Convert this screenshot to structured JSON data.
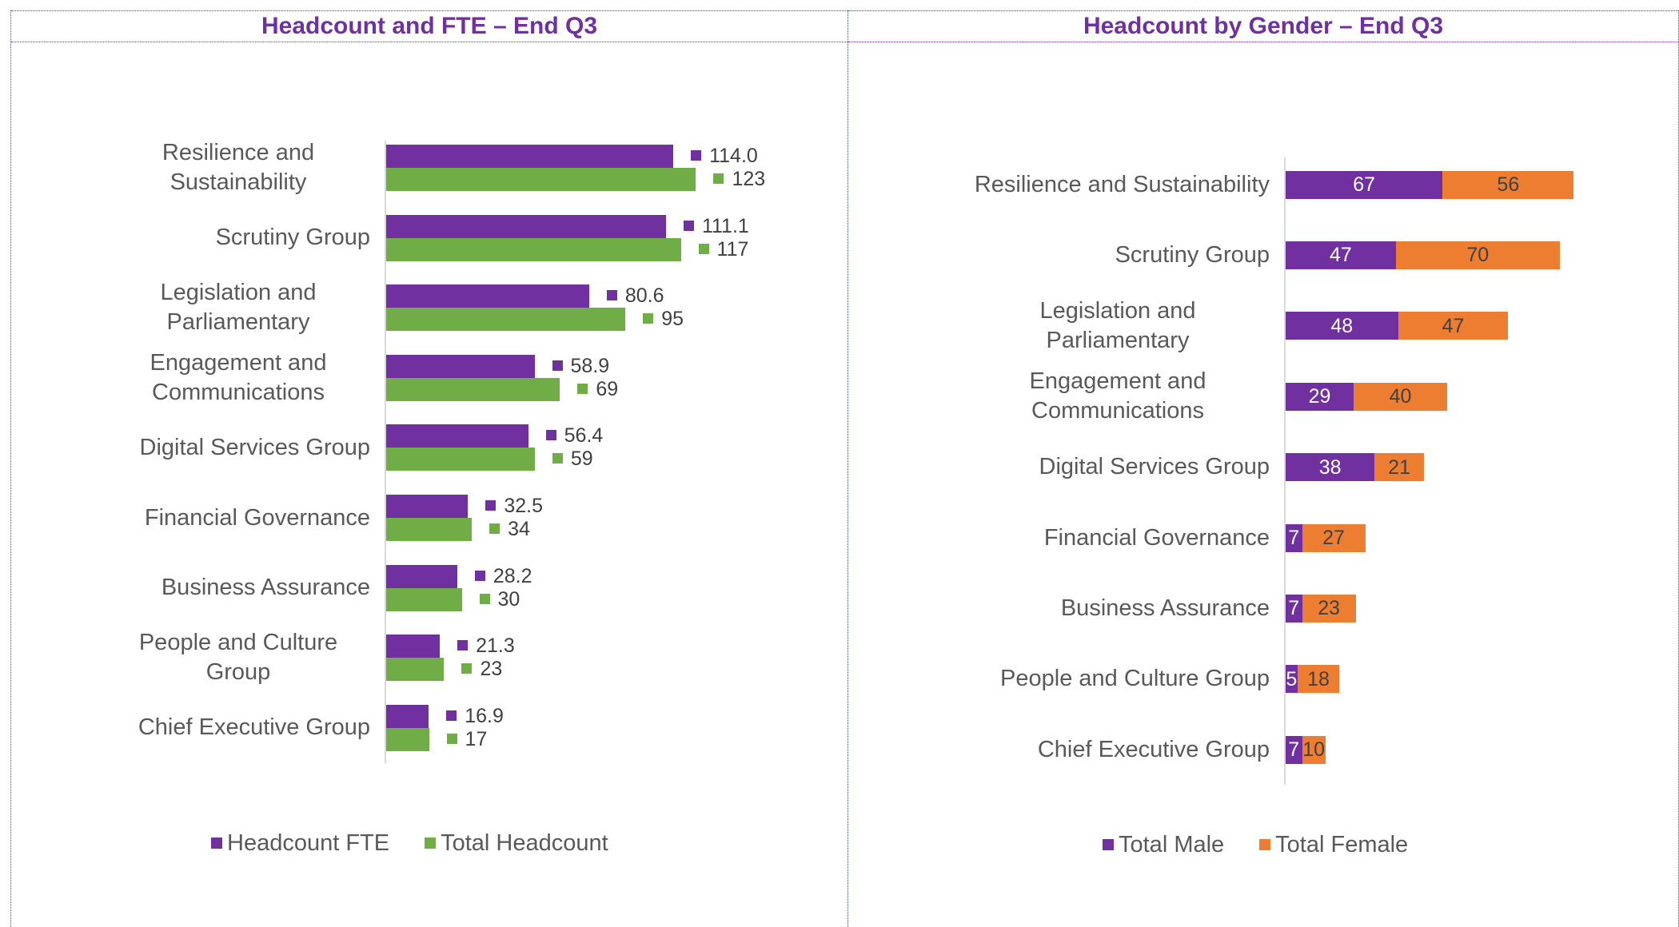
{
  "chart_data": [
    {
      "type": "bar",
      "orientation": "horizontal",
      "title": "Headcount and FTE – End Q3",
      "categories": [
        "Resilience and Sustainability",
        "Scrutiny Group",
        "Legislation and Parliamentary",
        "Engagement and Communications",
        "Digital Services Group",
        "Financial Governance",
        "Business Assurance",
        "People and Culture Group",
        "Chief Executive Group"
      ],
      "series": [
        {
          "name": "Headcount FTE",
          "color": "#7030a0",
          "values": [
            114.0,
            111.1,
            80.6,
            58.9,
            56.4,
            32.5,
            28.2,
            21.3,
            16.9
          ],
          "value_labels": [
            "114.0",
            "111.1",
            "80.6",
            "58.9",
            "56.4",
            "32.5",
            "28.2",
            "21.3",
            "16.9"
          ]
        },
        {
          "name": "Total Headcount",
          "color": "#70ad47",
          "values": [
            123,
            117,
            95,
            69,
            59,
            34,
            30,
            23,
            17
          ]
        }
      ],
      "legend": "bottom"
    },
    {
      "type": "stacked_bar",
      "orientation": "horizontal",
      "title": "Headcount by Gender – End Q3",
      "categories": [
        "Resilience and Sustainability",
        "Scrutiny Group",
        "Legislation and Parliamentary",
        "Engagement and Communications",
        "Digital Services Group",
        "Financial Governance",
        "Business Assurance",
        "People and Culture Group",
        "Chief Executive Group"
      ],
      "series": [
        {
          "name": "Total Male",
          "color": "#7030a0",
          "values": [
            67,
            47,
            48,
            29,
            38,
            7,
            7,
            5,
            7
          ]
        },
        {
          "name": "Total Female",
          "color": "#ed7d31",
          "values": [
            56,
            70,
            47,
            40,
            21,
            27,
            23,
            18,
            10
          ]
        }
      ],
      "legend": "bottom"
    }
  ]
}
